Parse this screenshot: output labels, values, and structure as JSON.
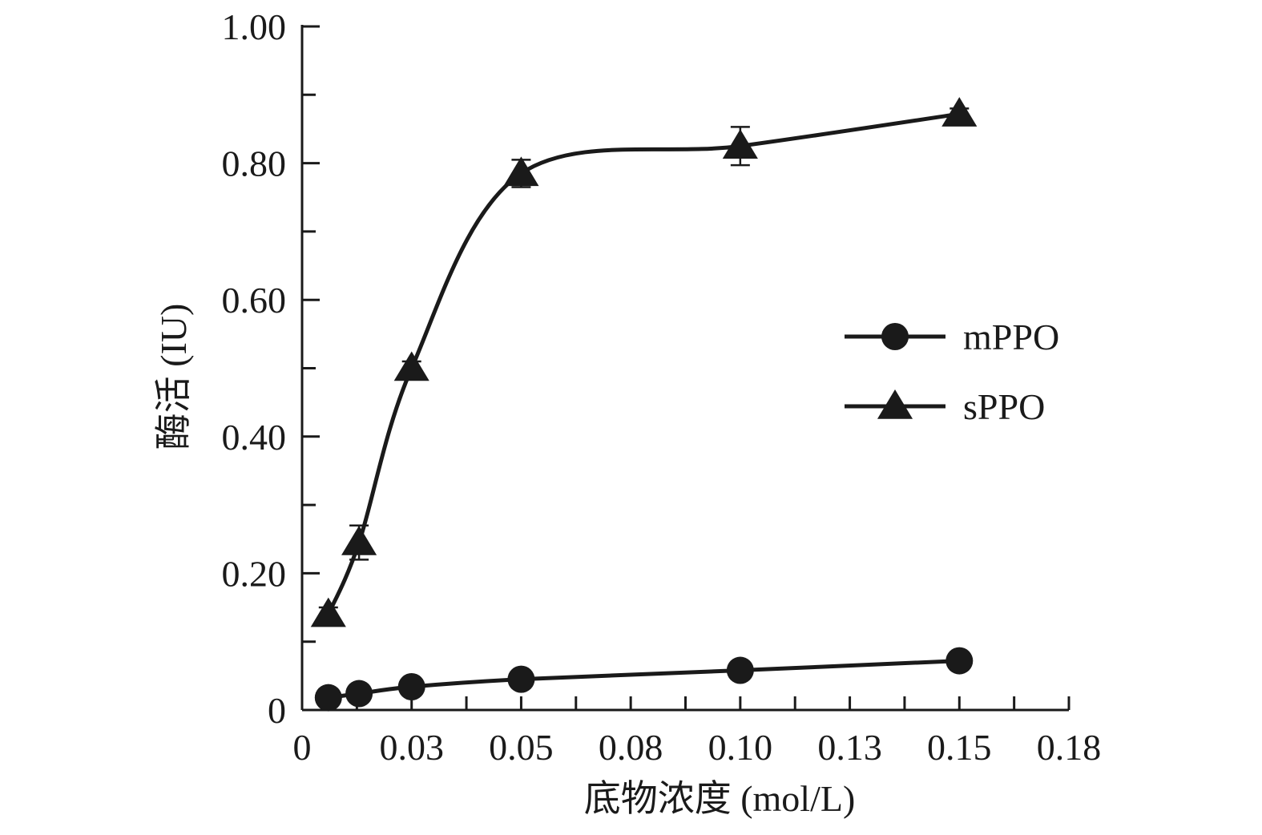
{
  "chart_data": {
    "type": "line",
    "title": "",
    "xlabel": "底物浓度 (mol/L)",
    "ylabel": "酶活 (IU)",
    "xlim": [
      0,
      0.175
    ],
    "ylim": [
      0,
      1.0
    ],
    "x_ticks": [
      0,
      0.025,
      0.05,
      0.075,
      0.1,
      0.125,
      0.15,
      0.175
    ],
    "x_tick_labels": [
      "0",
      "0.03",
      "0.05",
      "0.08",
      "0.10",
      "0.13",
      "0.15",
      "0.18"
    ],
    "y_ticks": [
      0,
      0.2,
      0.4,
      0.6,
      0.8,
      1.0
    ],
    "y_tick_labels": [
      "0",
      "0.20",
      "0.40",
      "0.60",
      "0.80",
      "1.00"
    ],
    "grid": false,
    "legend_position": "right",
    "series": [
      {
        "name": "mPPO",
        "marker": "circle",
        "x": [
          0.006,
          0.013,
          0.025,
          0.05,
          0.1,
          0.15
        ],
        "values": [
          0.018,
          0.024,
          0.034,
          0.045,
          0.058,
          0.072
        ],
        "error": [
          0,
          0,
          0,
          0,
          0,
          0
        ],
        "color": "#1a1a1a"
      },
      {
        "name": "sPPO",
        "marker": "triangle",
        "x": [
          0.006,
          0.013,
          0.025,
          0.05,
          0.1,
          0.15
        ],
        "values": [
          0.14,
          0.245,
          0.5,
          0.785,
          0.825,
          0.872
        ],
        "error": [
          0.01,
          0.025,
          0.01,
          0.02,
          0.028,
          0.008
        ],
        "color": "#1a1a1a"
      }
    ]
  }
}
